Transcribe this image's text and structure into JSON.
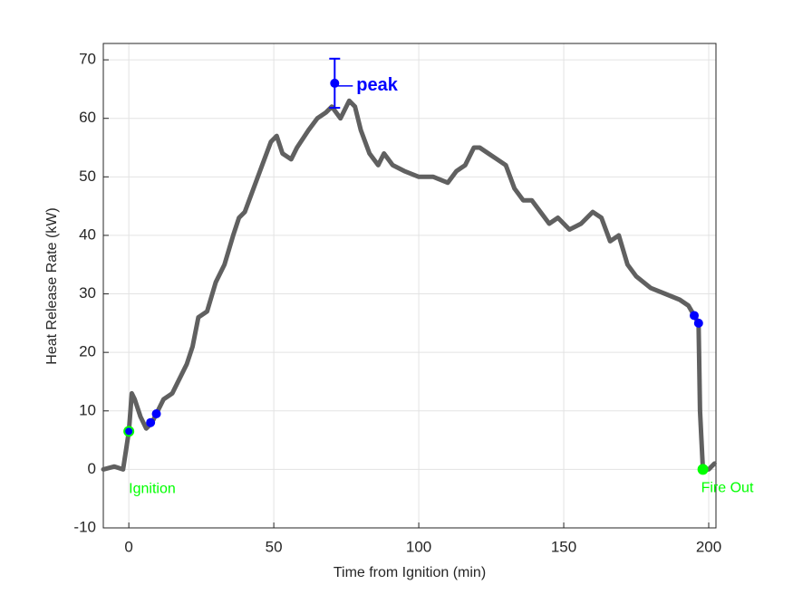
{
  "chart_data": {
    "type": "line",
    "xlabel": "Time from Ignition (min)",
    "ylabel": "Heat Release Rate (kW)",
    "xlim": [
      -8.8,
      202.5
    ],
    "ylim": [
      -10,
      72.8
    ],
    "xticks": [
      0,
      50,
      100,
      150,
      200
    ],
    "yticks": [
      -10,
      0,
      10,
      20,
      30,
      40,
      50,
      60,
      70
    ],
    "grid": true,
    "series": [
      {
        "color": "#606060",
        "x": [
          -8.8,
          -5,
          -2,
          0,
          1,
          2,
          4,
          6,
          8,
          10,
          12,
          15,
          18,
          20,
          22,
          24,
          27,
          30,
          33,
          36,
          38,
          40,
          43,
          46,
          49,
          51,
          53,
          56,
          58,
          62,
          65,
          68,
          70,
          73,
          76,
          78,
          80,
          83,
          86,
          88,
          91,
          95,
          100,
          105,
          110,
          113,
          116,
          119,
          121,
          124,
          127,
          130,
          133,
          136,
          139,
          142,
          145,
          148,
          152,
          156,
          160,
          163,
          166,
          169,
          172,
          175,
          180,
          185,
          190,
          193,
          195,
          196.5,
          197,
          198,
          200,
          202
        ],
        "values": [
          0,
          0.5,
          0,
          6.5,
          13,
          12,
          9,
          7,
          8,
          10,
          12,
          13,
          16,
          18,
          21,
          26,
          27,
          32,
          35,
          40,
          43,
          44,
          48,
          52,
          56,
          57,
          54,
          53,
          55,
          58,
          60,
          61,
          62,
          60,
          63,
          62,
          58,
          54,
          52,
          54,
          52,
          51,
          50,
          50,
          49,
          51,
          52,
          55,
          55,
          54,
          53,
          52,
          48,
          46,
          46,
          44,
          42,
          43,
          41,
          42,
          44,
          43,
          39,
          40,
          35,
          33,
          31,
          30,
          29,
          28,
          26.3,
          25,
          10,
          0,
          0,
          1
        ]
      }
    ],
    "marker_color": "#0000ff",
    "points": {
      "x": [
        7.5,
        9.5,
        195,
        196.5
      ],
      "values": [
        8,
        9.5,
        26.3,
        25
      ]
    },
    "peak": {
      "x": 71,
      "value": 66,
      "error": 4.2,
      "label": "peak"
    },
    "ignition": {
      "x": 0,
      "value": 6.5,
      "label": "Ignition",
      "color": "#00ff00"
    },
    "fire_out": {
      "x": 198,
      "value": 0,
      "label": "Fire Out",
      "color": "#00ff00"
    }
  }
}
